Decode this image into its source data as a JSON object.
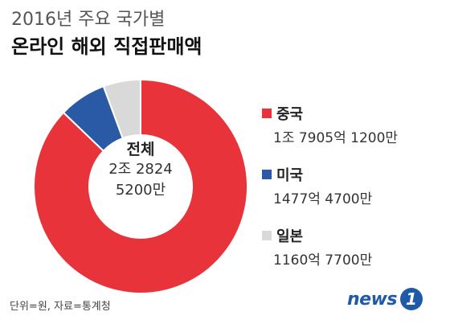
{
  "header": {
    "title_line1": "2016년 주요 국가별",
    "title_line2": "온라인 해외 직접판매액"
  },
  "center": {
    "title": "전체",
    "value_line1": "2조 2824",
    "value_line2": "5200만"
  },
  "chart_data": {
    "type": "pie",
    "style": "donut",
    "title": "2016년 주요 국가별 온라인 해외 직접판매액",
    "categories": [
      "중국",
      "미국",
      "일본"
    ],
    "values": [
      1790512000000,
      147747000000,
      116077000000
    ],
    "value_labels": [
      "1조 7905억 1200만",
      "1477억 4700만",
      "1160억 7700만"
    ],
    "colors": [
      "#e8333a",
      "#2a5aa5",
      "#d9d9d9"
    ],
    "legend_position": "right",
    "total_label": "2조 2824 5200만"
  },
  "legend": {
    "items": [
      {
        "name": "중국",
        "value": "1조 7905억 1200만",
        "color": "#e8333a"
      },
      {
        "name": "미국",
        "value": "1477억 4700만",
        "color": "#2a5aa5"
      },
      {
        "name": "일본",
        "value": "1160억 7700만",
        "color": "#d9d9d9"
      }
    ]
  },
  "footer": {
    "note": "단위=원, 자료=통계청",
    "logo_text": "news",
    "logo_mark": "1"
  }
}
